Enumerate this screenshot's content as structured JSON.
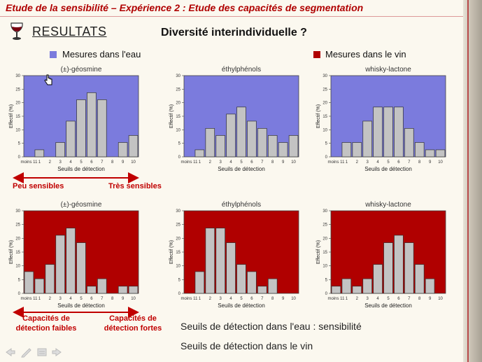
{
  "header": {
    "title": "Etude de la sensibilité – Expérience 2 : Etude des capacités de segmentation"
  },
  "section": {
    "title": "RESULTATS",
    "subtitle": "Diversité interindividuelle ?"
  },
  "legend": {
    "water": {
      "label": "Mesures dans l'eau",
      "color": "#7b7bdd"
    },
    "wine": {
      "label": "Mesures dans le vin",
      "color": "#b00000"
    }
  },
  "annotations": {
    "low_sensitivity": "Peu sensibles",
    "high_sensitivity": "Très sensibles",
    "low_capacity_1": "Capacités de",
    "low_capacity_2": "détection faibles",
    "high_capacity_1": "Capacités de",
    "high_capacity_2": "détection fortes"
  },
  "bottom_text": {
    "line1": "Seuils de détection dans l'eau : sensibilité",
    "line2": "Seuils de détection dans le vin"
  },
  "chart_data": [
    {
      "type": "bar",
      "medium": "water",
      "title": "(±)-géosmine",
      "xlabel": "Seuils de détection",
      "ylabel": "Effectif (%)",
      "categories": [
        "moins 11",
        "1",
        "2",
        "3",
        "4",
        "5",
        "6",
        "7",
        "8",
        "9",
        "10"
      ],
      "values": [
        0,
        2.6,
        0,
        5.3,
        13.2,
        21.1,
        23.7,
        21.1,
        0,
        5.3,
        7.9
      ],
      "ylim": [
        0,
        30
      ],
      "yticks": [
        0,
        5,
        10,
        15,
        20,
        25,
        30
      ],
      "bg": "#7b7bdd"
    },
    {
      "type": "bar",
      "medium": "water",
      "title": "éthylphénols",
      "xlabel": "Seuils de détection",
      "ylabel": "Effectif (%)",
      "categories": [
        "moins 11",
        "1",
        "2",
        "3",
        "4",
        "5",
        "6",
        "7",
        "8",
        "9",
        "10"
      ],
      "values": [
        0,
        2.6,
        10.5,
        7.9,
        15.8,
        18.4,
        13.2,
        10.5,
        7.9,
        5.3,
        7.9
      ],
      "ylim": [
        0,
        30
      ],
      "yticks": [
        0,
        5,
        10,
        15,
        20,
        25,
        30
      ],
      "bg": "#7b7bdd"
    },
    {
      "type": "bar",
      "medium": "water",
      "title": "whisky-lactone",
      "xlabel": "Seuils de détection",
      "ylabel": "Effectif (%)",
      "categories": [
        "moins 11",
        "1",
        "2",
        "3",
        "4",
        "5",
        "6",
        "7",
        "8",
        "9",
        "10"
      ],
      "values": [
        0,
        5.3,
        5.3,
        13.2,
        18.4,
        18.4,
        18.4,
        10.5,
        5.3,
        2.6,
        2.6
      ],
      "ylim": [
        0,
        30
      ],
      "yticks": [
        0,
        5,
        10,
        15,
        20,
        25,
        30
      ],
      "bg": "#7b7bdd"
    },
    {
      "type": "bar",
      "medium": "wine",
      "title": "(±)-géosmine",
      "xlabel": "Seuils de détection",
      "ylabel": "Effectif (%)",
      "categories": [
        "moins 11",
        "1",
        "2",
        "3",
        "4",
        "5",
        "6",
        "7",
        "8",
        "9",
        "10"
      ],
      "values": [
        7.9,
        5.3,
        10.5,
        21.1,
        23.7,
        18.4,
        2.6,
        5.3,
        0,
        2.6,
        2.6
      ],
      "ylim": [
        0,
        30
      ],
      "yticks": [
        0,
        5,
        10,
        15,
        20,
        25,
        30
      ],
      "bg": "#b00000"
    },
    {
      "type": "bar",
      "medium": "wine",
      "title": "éthylphénols",
      "xlabel": "Seuils de détection",
      "ylabel": "Effectif (%)",
      "categories": [
        "moins 11",
        "1",
        "2",
        "3",
        "4",
        "5",
        "6",
        "7",
        "8",
        "9",
        "10"
      ],
      "values": [
        0,
        7.9,
        23.7,
        23.7,
        18.4,
        10.5,
        7.9,
        2.6,
        5.3,
        0,
        0
      ],
      "ylim": [
        0,
        30
      ],
      "yticks": [
        0,
        5,
        10,
        15,
        20,
        25,
        30
      ],
      "bg": "#b00000"
    },
    {
      "type": "bar",
      "medium": "wine",
      "title": "whisky-lactone",
      "xlabel": "Seuils de détection",
      "ylabel": "Effectif (%)",
      "categories": [
        "moins 11",
        "1",
        "2",
        "3",
        "4",
        "5",
        "6",
        "7",
        "8",
        "9",
        "10"
      ],
      "values": [
        2.6,
        5.3,
        2.6,
        5.3,
        10.5,
        18.4,
        21.1,
        18.4,
        10.5,
        5.3,
        0
      ],
      "ylim": [
        0,
        30
      ],
      "yticks": [
        0,
        5,
        10,
        15,
        20,
        25,
        30
      ],
      "bg": "#b00000"
    }
  ]
}
